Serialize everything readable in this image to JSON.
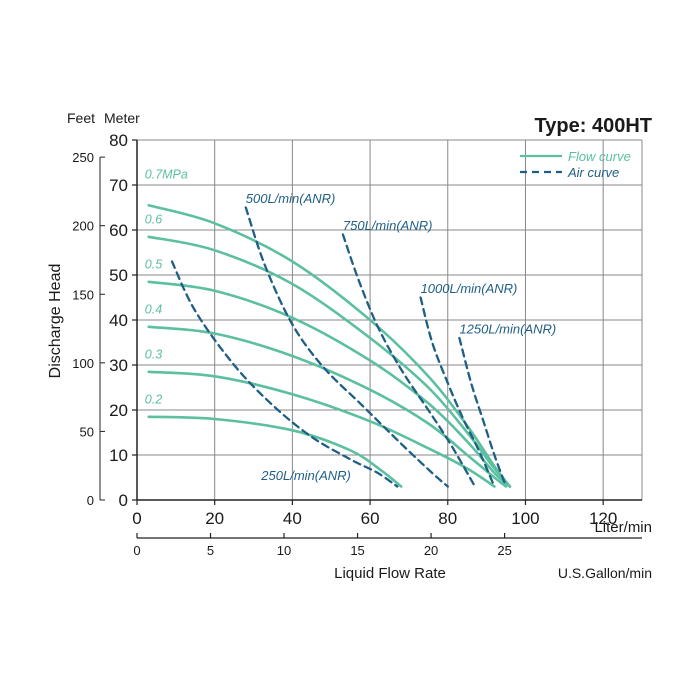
{
  "chart_data": {
    "type": "line",
    "title": "Type: 400HT",
    "xlabel": "Liquid Flow Rate",
    "x_unit": "Liter/min",
    "x2_unit": "U.S.Gallon/min",
    "ylabel": "Discharge Head",
    "y_unit_meter": "Meter",
    "y_unit_feet": "Feet",
    "xlim": [
      0,
      130
    ],
    "ylim": [
      0,
      80
    ],
    "x_ticks": [
      0,
      20,
      40,
      60,
      80,
      100,
      120
    ],
    "y_ticks": [
      0,
      10,
      20,
      30,
      40,
      50,
      60,
      70,
      80
    ],
    "x2_ticks": [
      0,
      5,
      10,
      15,
      20,
      25
    ],
    "y_feet_ticks": [
      0,
      50,
      100,
      150,
      200,
      250
    ],
    "grid": true,
    "legend": {
      "position": "top-right",
      "entries": [
        {
          "label": "Flow curve",
          "style": "solid",
          "color": "#5cbf9f"
        },
        {
          "label": "Air curve",
          "style": "dashed",
          "color": "#1f5f86"
        }
      ]
    },
    "series": [
      {
        "name": "0.7MPa",
        "kind": "flow",
        "x": [
          3,
          20,
          40,
          60,
          75,
          85,
          92,
          96
        ],
        "y": [
          65.5,
          61.5,
          53,
          40,
          27.5,
          16.5,
          7.5,
          3
        ]
      },
      {
        "name": "0.6",
        "kind": "flow",
        "x": [
          3,
          20,
          40,
          60,
          75,
          85,
          92,
          96
        ],
        "y": [
          58.5,
          55.5,
          48,
          36,
          25,
          15,
          7,
          3
        ]
      },
      {
        "name": "0.5",
        "kind": "flow",
        "x": [
          3,
          20,
          40,
          60,
          75,
          85,
          92,
          96
        ],
        "y": [
          48.5,
          46.5,
          40.5,
          31,
          21.5,
          13,
          6,
          3
        ]
      },
      {
        "name": "0.4",
        "kind": "flow",
        "x": [
          3,
          20,
          40,
          60,
          75,
          85,
          92,
          95
        ],
        "y": [
          38.5,
          37,
          32,
          24.5,
          17,
          10,
          5,
          3
        ]
      },
      {
        "name": "0.3",
        "kind": "flow",
        "x": [
          3,
          20,
          40,
          60,
          75,
          85,
          92
        ],
        "y": [
          28.5,
          27.5,
          23.5,
          17.5,
          11.5,
          7,
          3
        ]
      },
      {
        "name": "0.2",
        "kind": "flow",
        "x": [
          3,
          20,
          40,
          55,
          63,
          68
        ],
        "y": [
          18.5,
          18,
          15.5,
          11,
          6.5,
          3
        ]
      },
      {
        "name": "250L/min(ANR)",
        "kind": "air",
        "x": [
          9,
          15,
          25,
          35,
          45,
          55,
          62,
          67
        ],
        "y": [
          53,
          42,
          30,
          21,
          14,
          9,
          6,
          3
        ]
      },
      {
        "name": "500L/min(ANR)",
        "kind": "air",
        "x": [
          28,
          33,
          40,
          48,
          58,
          68,
          76,
          80
        ],
        "y": [
          65,
          52,
          39,
          29.5,
          21,
          12.5,
          6,
          3
        ]
      },
      {
        "name": "750L/min(ANR)",
        "kind": "air",
        "x": [
          53,
          57,
          62,
          68,
          75,
          81,
          87
        ],
        "y": [
          59,
          49,
          38.5,
          29,
          20,
          12,
          3
        ]
      },
      {
        "name": "1000L/min(ANR)",
        "kind": "air",
        "x": [
          73,
          76,
          80,
          84,
          88,
          92
        ],
        "y": [
          45,
          35,
          26,
          18,
          11,
          3
        ]
      },
      {
        "name": "1250L/min(ANR)",
        "kind": "air",
        "x": [
          83,
          86,
          89,
          92,
          95
        ],
        "y": [
          36,
          26,
          18,
          10,
          3
        ]
      }
    ],
    "curve_labels": [
      {
        "text": "0.7MPa",
        "x": 2,
        "y": 71.5,
        "kind": "flow"
      },
      {
        "text": "0.6",
        "x": 2,
        "y": 61.5,
        "kind": "flow"
      },
      {
        "text": "0.5",
        "x": 2,
        "y": 51.5,
        "kind": "flow"
      },
      {
        "text": "0.4",
        "x": 2,
        "y": 41.5,
        "kind": "flow"
      },
      {
        "text": "0.3",
        "x": 2,
        "y": 31.5,
        "kind": "flow"
      },
      {
        "text": "0.2",
        "x": 2,
        "y": 21.5,
        "kind": "flow"
      },
      {
        "text": "500L/min(ANR)",
        "x": 28,
        "y": 66,
        "kind": "air"
      },
      {
        "text": "750L/min(ANR)",
        "x": 53,
        "y": 60,
        "kind": "air"
      },
      {
        "text": "1000L/min(ANR)",
        "x": 73,
        "y": 46,
        "kind": "air"
      },
      {
        "text": "1250L/min(ANR)",
        "x": 83,
        "y": 37,
        "kind": "air"
      },
      {
        "text": "250L/min(ANR)",
        "x": 32,
        "y": 4.5,
        "kind": "air"
      }
    ],
    "colors": {
      "flow": "#5cbf9f",
      "air": "#1f5f86",
      "flow_label": "#5cbf9f",
      "air_label": "#1f5f86",
      "grid": "#888888",
      "axis": "#222222"
    }
  }
}
